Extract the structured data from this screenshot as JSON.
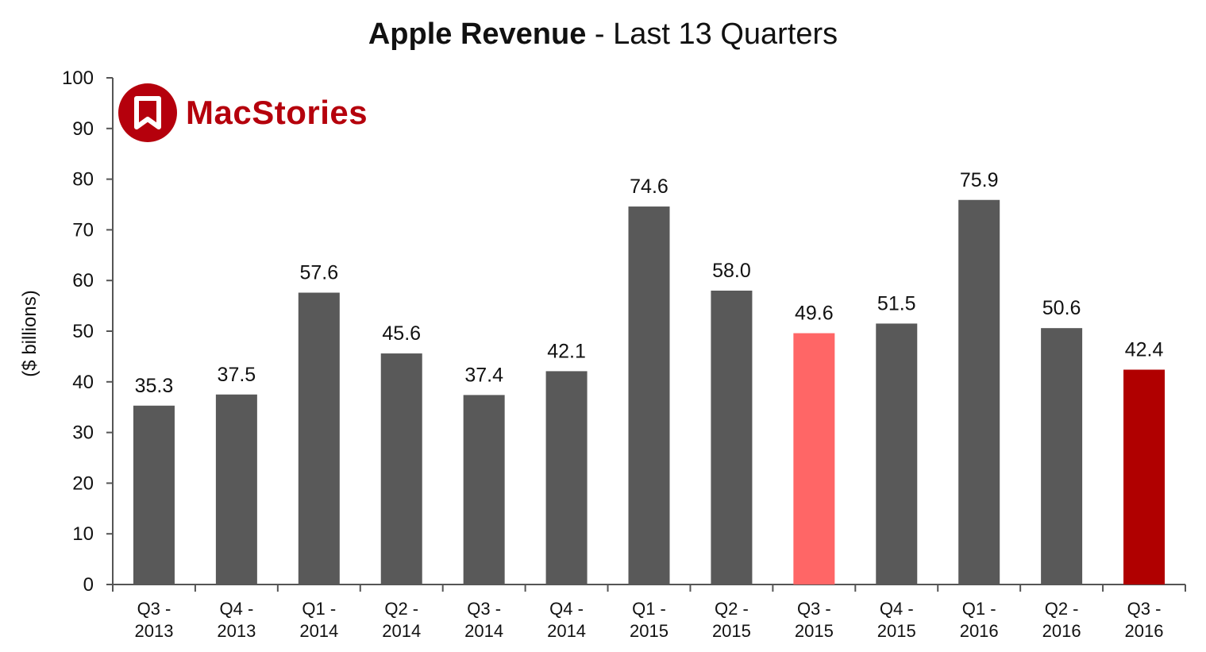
{
  "title_bold": "Apple Revenue",
  "title_rest": " - Last 13 Quarters",
  "logo_text": "MacStories",
  "chart_data": {
    "type": "bar",
    "title": "Apple Revenue - Last 13 Quarters",
    "ylabel": "($ billions)",
    "xlabel": "",
    "ylim": [
      0,
      100
    ],
    "yticks": [
      0,
      10,
      20,
      30,
      40,
      50,
      60,
      70,
      80,
      90,
      100
    ],
    "grid": false,
    "categories": [
      [
        "Q3 -",
        "2013"
      ],
      [
        "Q4 -",
        "2013"
      ],
      [
        "Q1 -",
        "2014"
      ],
      [
        "Q2 -",
        "2014"
      ],
      [
        "Q3 -",
        "2014"
      ],
      [
        "Q4 -",
        "2014"
      ],
      [
        "Q1 -",
        "2015"
      ],
      [
        "Q2 -",
        "2015"
      ],
      [
        "Q3 -",
        "2015"
      ],
      [
        "Q4 -",
        "2015"
      ],
      [
        "Q1 -",
        "2016"
      ],
      [
        "Q2 -",
        "2016"
      ],
      [
        "Q3 -",
        "2016"
      ]
    ],
    "values": [
      35.3,
      37.5,
      57.6,
      45.6,
      37.4,
      42.1,
      74.6,
      58.0,
      49.6,
      51.5,
      75.9,
      50.6,
      42.4
    ],
    "value_labels": [
      "35.3",
      "37.5",
      "57.6",
      "45.6",
      "37.4",
      "42.1",
      "74.6",
      "58.0",
      "49.6",
      "51.5",
      "75.9",
      "50.6",
      "42.4"
    ],
    "bar_colors": [
      "#595959",
      "#595959",
      "#595959",
      "#595959",
      "#595959",
      "#595959",
      "#595959",
      "#595959",
      "#ff6666",
      "#595959",
      "#595959",
      "#595959",
      "#b00000"
    ]
  },
  "colors": {
    "bar_default": "#595959",
    "highlight_prev_year": "#ff6666",
    "highlight_current": "#b00000",
    "brand": "#b5000c"
  }
}
